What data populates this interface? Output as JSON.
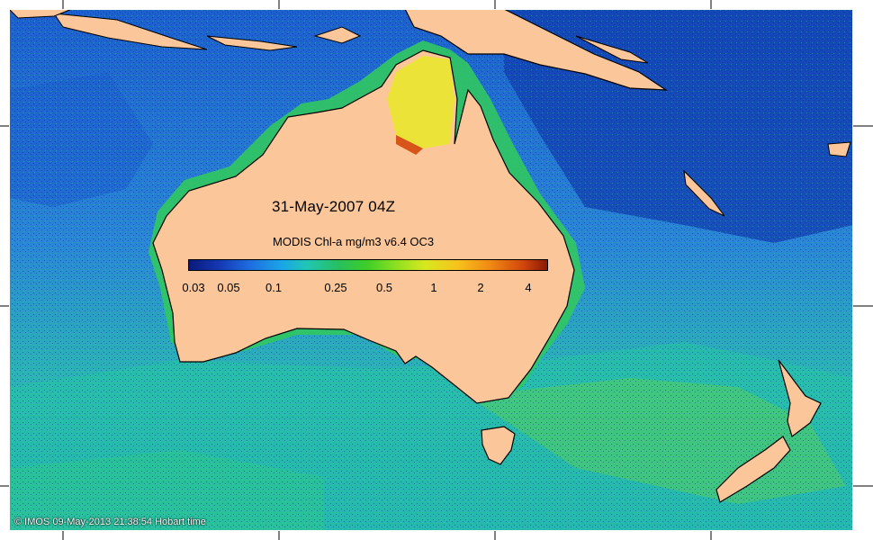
{
  "map": {
    "date_label": "31-May-2007 04Z",
    "colorbar": {
      "title": "MODIS Chl-a mg/m3 v6.4 OC3",
      "ticks": [
        "0.03",
        "0.05",
        "0.1",
        "0.25",
        "0.5",
        "1",
        "2",
        "4"
      ],
      "colors": {
        "low": "#0a1a7a",
        "mid": "#3fcf26",
        "high": "#8a1a06"
      }
    },
    "copyright": "© IMOS 09-May-2013 21:38:54 Hobart time",
    "colors": {
      "land": "#fbc79a",
      "deep_ocean": "#123fb0",
      "ocean": "#2a86d8",
      "productive": "#25c4a4",
      "coastal": "#e8e826",
      "frame": "#ffffff"
    }
  }
}
